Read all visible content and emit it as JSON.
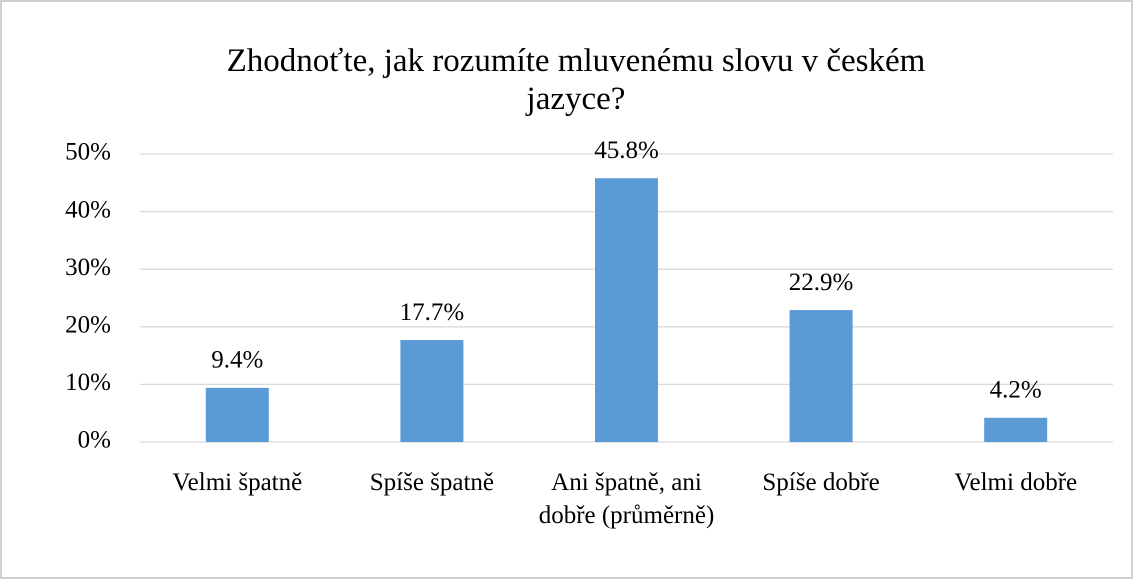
{
  "chart_data": {
    "type": "bar",
    "title": "Zhodnoťte, jak rozumíte mluvenému slovu v českém jazyce?",
    "categories": [
      "Velmi špatně",
      "Spíše špatně",
      "Ani špatně, ani dobře (průměrně)",
      "Spíše dobře",
      "Velmi dobře"
    ],
    "values": [
      9.4,
      17.7,
      45.8,
      22.9,
      4.2
    ],
    "value_labels": [
      "9.4%",
      "17.7%",
      "45.8%",
      "22.9%",
      "4.2%"
    ],
    "color": "#5b9bd5",
    "ylim": [
      0,
      50
    ],
    "yticks": [
      {
        "value": 0,
        "label": "0%"
      },
      {
        "value": 10,
        "label": "10%"
      },
      {
        "value": 20,
        "label": "20%"
      },
      {
        "value": 30,
        "label": "30%"
      },
      {
        "value": 40,
        "label": "40%"
      },
      {
        "value": 50,
        "label": "50%"
      }
    ],
    "grid": true
  }
}
